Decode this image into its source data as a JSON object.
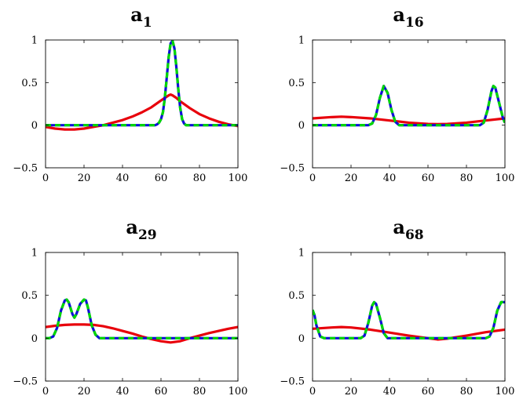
{
  "chart_data": [
    {
      "type": "line",
      "title": "a",
      "title_subscript": "1",
      "xlim": [
        0,
        100
      ],
      "ylim": [
        -0.5,
        1
      ],
      "xticks": [
        0,
        20,
        40,
        60,
        80,
        100
      ],
      "yticks": [
        -0.5,
        0,
        0.5,
        1
      ],
      "xtick_labels": [
        "0",
        "20",
        "40",
        "60",
        "80",
        "100"
      ],
      "ytick_labels": [
        "−0.5",
        "0",
        "0.5",
        "1"
      ],
      "series": [
        {
          "color": "#e8000b",
          "style": "solid",
          "x": [
            0,
            5,
            10,
            15,
            20,
            25,
            30,
            35,
            40,
            45,
            50,
            55,
            60,
            62,
            64,
            65,
            66,
            68,
            70,
            75,
            80,
            85,
            90,
            95,
            100
          ],
          "y": [
            -0.02,
            -0.04,
            -0.05,
            -0.05,
            -0.04,
            -0.02,
            0.0,
            0.03,
            0.06,
            0.1,
            0.15,
            0.21,
            0.29,
            0.32,
            0.35,
            0.36,
            0.35,
            0.32,
            0.28,
            0.2,
            0.13,
            0.08,
            0.04,
            0.01,
            -0.01
          ]
        },
        {
          "color": "#1010d8",
          "style": "solid",
          "x": [
            0,
            10,
            20,
            30,
            40,
            50,
            57,
            58,
            59,
            60,
            61,
            62,
            63,
            64,
            65,
            66,
            67,
            68,
            69,
            70,
            71,
            72,
            73,
            80,
            90,
            100
          ],
          "y": [
            0,
            0,
            0,
            0,
            0,
            0,
            0,
            0.01,
            0.03,
            0.07,
            0.15,
            0.32,
            0.56,
            0.8,
            0.96,
            0.99,
            0.9,
            0.68,
            0.42,
            0.2,
            0.07,
            0.02,
            0,
            0,
            0,
            0
          ]
        },
        {
          "color": "#00d800",
          "style": "dashed",
          "x": [
            0,
            10,
            20,
            30,
            40,
            50,
            57,
            58,
            59,
            60,
            61,
            62,
            63,
            64,
            65,
            66,
            67,
            68,
            69,
            70,
            71,
            72,
            73,
            80,
            90,
            100
          ],
          "y": [
            0,
            0,
            0,
            0,
            0,
            0,
            0,
            0.01,
            0.03,
            0.07,
            0.15,
            0.32,
            0.56,
            0.8,
            0.96,
            0.99,
            0.9,
            0.68,
            0.42,
            0.2,
            0.07,
            0.02,
            0,
            0,
            0,
            0
          ]
        }
      ]
    },
    {
      "type": "line",
      "title": "a",
      "title_subscript": "16",
      "xlim": [
        0,
        100
      ],
      "ylim": [
        -0.5,
        1
      ],
      "xticks": [
        0,
        20,
        40,
        60,
        80,
        100
      ],
      "yticks": [
        -0.5,
        0,
        0.5,
        1
      ],
      "xtick_labels": [
        "0",
        "20",
        "40",
        "60",
        "80",
        "100"
      ],
      "ytick_labels": [
        "−0.5",
        "0",
        "0.5",
        "1"
      ],
      "series": [
        {
          "color": "#e8000b",
          "style": "solid",
          "x": [
            0,
            10,
            15,
            20,
            30,
            40,
            50,
            60,
            65,
            70,
            80,
            90,
            100
          ],
          "y": [
            0.08,
            0.095,
            0.1,
            0.095,
            0.08,
            0.055,
            0.03,
            0.015,
            0.012,
            0.015,
            0.03,
            0.055,
            0.08
          ]
        },
        {
          "color": "#1010d8",
          "style": "solid",
          "x": [
            0,
            10,
            20,
            29,
            31,
            33,
            35,
            37,
            39,
            41,
            43,
            45,
            50,
            60,
            70,
            80,
            87,
            89,
            91,
            93,
            94,
            95,
            97,
            99,
            100
          ],
          "y": [
            0,
            0,
            0,
            0,
            0.02,
            0.12,
            0.32,
            0.46,
            0.38,
            0.18,
            0.04,
            0,
            0,
            0,
            0,
            0,
            0,
            0.03,
            0.18,
            0.4,
            0.46,
            0.44,
            0.26,
            0.08,
            0.03
          ]
        },
        {
          "color": "#00d800",
          "style": "dashed",
          "x": [
            0,
            10,
            20,
            29,
            31,
            33,
            35,
            37,
            39,
            41,
            43,
            45,
            50,
            60,
            70,
            80,
            87,
            89,
            91,
            93,
            94,
            95,
            97,
            99,
            100
          ],
          "y": [
            0,
            0,
            0,
            0,
            0.02,
            0.12,
            0.32,
            0.46,
            0.38,
            0.18,
            0.04,
            0,
            0,
            0,
            0,
            0,
            0,
            0.03,
            0.18,
            0.4,
            0.46,
            0.44,
            0.26,
            0.08,
            0.03
          ]
        }
      ]
    },
    {
      "type": "line",
      "title": "a",
      "title_subscript": "29",
      "xlim": [
        0,
        100
      ],
      "ylim": [
        -0.5,
        1
      ],
      "xticks": [
        0,
        20,
        40,
        60,
        80,
        100
      ],
      "yticks": [
        -0.5,
        0,
        0.5,
        1
      ],
      "xtick_labels": [
        "0",
        "20",
        "40",
        "60",
        "80",
        "100"
      ],
      "ytick_labels": [
        "−0.5",
        "0",
        "0.5",
        "1"
      ],
      "series": [
        {
          "color": "#e8000b",
          "style": "solid",
          "x": [
            0,
            5,
            10,
            15,
            20,
            25,
            30,
            35,
            40,
            45,
            50,
            55,
            60,
            65,
            70,
            75,
            80,
            85,
            90,
            95,
            100
          ],
          "y": [
            0.13,
            0.145,
            0.155,
            0.16,
            0.16,
            0.155,
            0.14,
            0.115,
            0.085,
            0.055,
            0.02,
            -0.01,
            -0.035,
            -0.05,
            -0.035,
            0.0,
            0.03,
            0.06,
            0.085,
            0.11,
            0.13
          ]
        },
        {
          "color": "#1010d8",
          "style": "solid",
          "x": [
            0,
            2,
            4,
            6,
            8,
            10,
            11,
            12,
            14,
            15,
            16,
            18,
            20,
            21,
            22,
            24,
            26,
            28,
            30,
            40,
            60,
            80,
            100
          ],
          "y": [
            0,
            0,
            0.02,
            0.12,
            0.32,
            0.44,
            0.45,
            0.42,
            0.28,
            0.24,
            0.28,
            0.4,
            0.45,
            0.44,
            0.36,
            0.15,
            0.04,
            0,
            0,
            0,
            0,
            0,
            0
          ]
        },
        {
          "color": "#00d800",
          "style": "dashed",
          "x": [
            0,
            2,
            4,
            6,
            8,
            10,
            11,
            12,
            14,
            15,
            16,
            18,
            20,
            21,
            22,
            24,
            26,
            28,
            30,
            40,
            60,
            80,
            100
          ],
          "y": [
            0,
            0,
            0.02,
            0.12,
            0.32,
            0.44,
            0.45,
            0.42,
            0.28,
            0.24,
            0.28,
            0.4,
            0.45,
            0.44,
            0.36,
            0.15,
            0.04,
            0,
            0,
            0,
            0,
            0,
            0
          ]
        }
      ]
    },
    {
      "type": "line",
      "title": "a",
      "title_subscript": "68",
      "xlim": [
        0,
        100
      ],
      "ylim": [
        -0.5,
        1
      ],
      "xticks": [
        0,
        20,
        40,
        60,
        80,
        100
      ],
      "yticks": [
        -0.5,
        0,
        0.5,
        1
      ],
      "xtick_labels": [
        "0",
        "20",
        "40",
        "60",
        "80",
        "100"
      ],
      "ytick_labels": [
        "−0.5",
        "0",
        "0.5",
        "1"
      ],
      "series": [
        {
          "color": "#e8000b",
          "style": "solid",
          "x": [
            0,
            10,
            15,
            20,
            30,
            40,
            50,
            60,
            65,
            70,
            80,
            90,
            100
          ],
          "y": [
            0.11,
            0.125,
            0.13,
            0.125,
            0.1,
            0.065,
            0.03,
            0.0,
            -0.015,
            -0.005,
            0.03,
            0.07,
            0.1
          ]
        },
        {
          "color": "#1010d8",
          "style": "solid",
          "x": [
            0,
            1,
            2,
            4,
            6,
            10,
            20,
            25,
            27,
            29,
            31,
            32,
            33,
            35,
            37,
            39,
            41,
            50,
            70,
            90,
            92,
            94,
            96,
            98,
            100
          ],
          "y": [
            0.33,
            0.27,
            0.15,
            0.02,
            0,
            0,
            0,
            0,
            0.03,
            0.18,
            0.38,
            0.42,
            0.4,
            0.24,
            0.06,
            0,
            0,
            0,
            0,
            0,
            0.02,
            0.12,
            0.32,
            0.42,
            0.42
          ]
        },
        {
          "color": "#00d800",
          "style": "dashed",
          "x": [
            0,
            1,
            2,
            4,
            6,
            10,
            20,
            25,
            27,
            29,
            31,
            32,
            33,
            35,
            37,
            39,
            41,
            50,
            70,
            90,
            92,
            94,
            96,
            98,
            100
          ],
          "y": [
            0.33,
            0.27,
            0.15,
            0.02,
            0,
            0,
            0,
            0,
            0.03,
            0.18,
            0.38,
            0.42,
            0.4,
            0.24,
            0.06,
            0,
            0,
            0,
            0,
            0,
            0.02,
            0.12,
            0.32,
            0.42,
            0.42
          ]
        }
      ]
    }
  ]
}
